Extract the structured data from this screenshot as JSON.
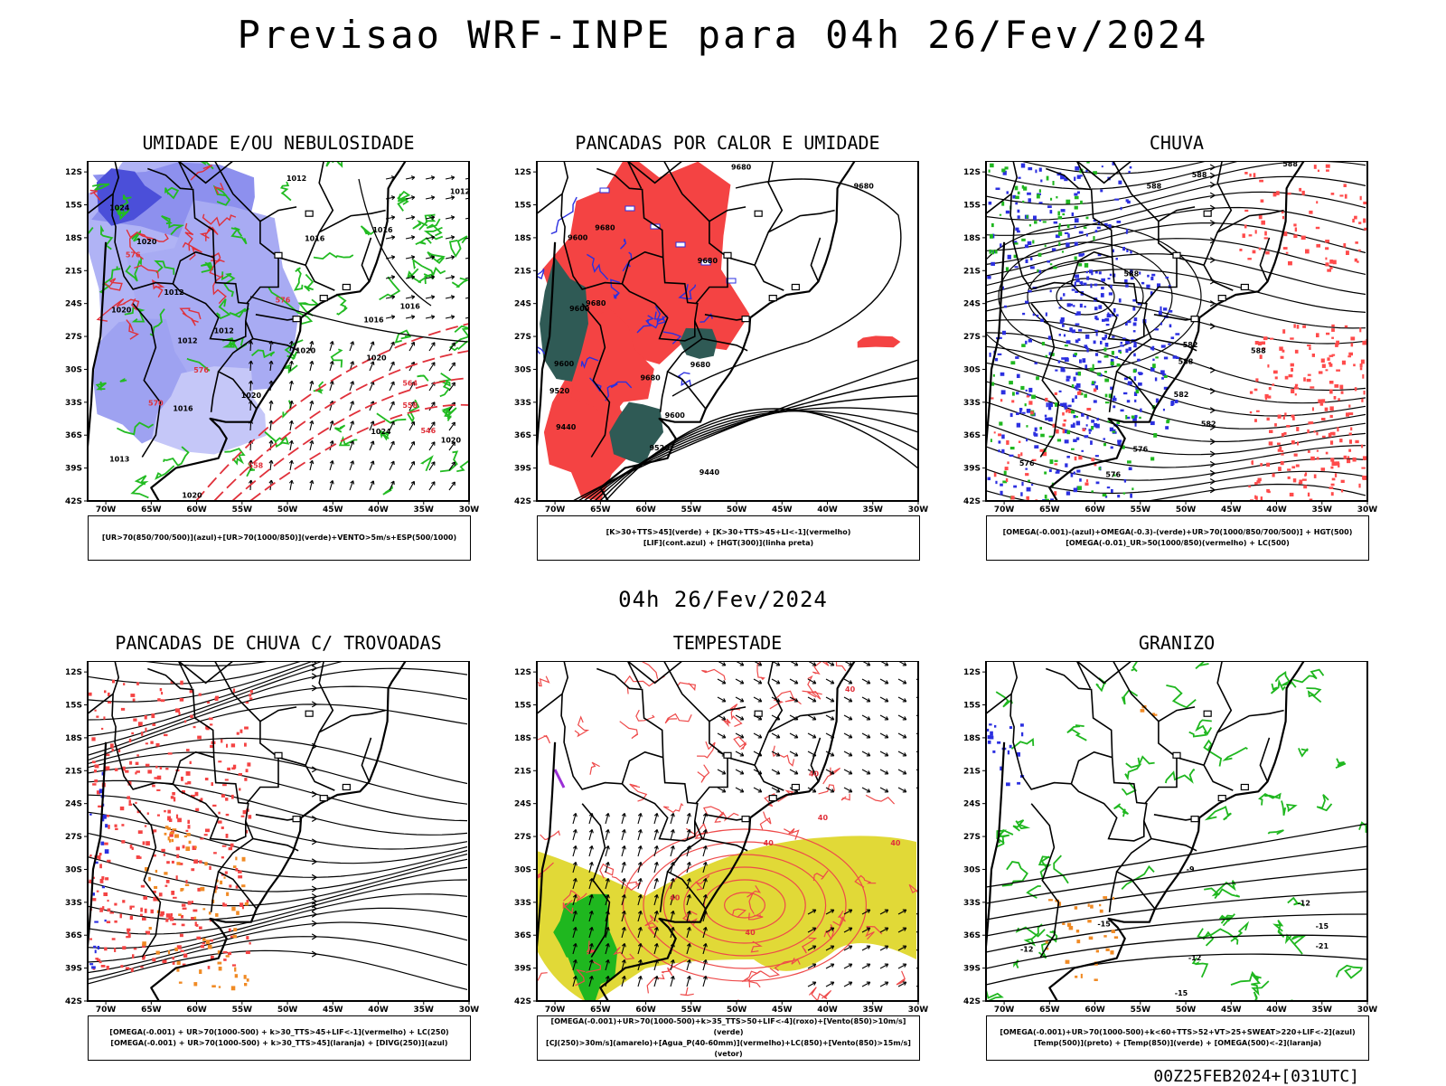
{
  "title": "Previsao WRF-INPE  para 04h 26/Fev/2024",
  "mid_title": "04h 26/Fev/2024",
  "footer": "00Z25FEB2024+[031UTC]",
  "lat_ticks": [
    "12S",
    "15S",
    "18S",
    "21S",
    "24S",
    "27S",
    "30S",
    "33S",
    "36S",
    "39S",
    "42S"
  ],
  "lon_ticks": [
    "70W",
    "65W",
    "60W",
    "55W",
    "50W",
    "45W",
    "40W",
    "35W",
    "30W"
  ],
  "panels": [
    {
      "title": "UMIDADE E/OU NEBULOSIDADE",
      "legend": [
        "[UR>70(850/700/500)](azul)+[UR>70(1000/850)](verde)+VENTO>5m/s+ESP(500/1000)"
      ],
      "fields": [
        "blue",
        "green",
        "red-dashed",
        "black",
        "arrows"
      ],
      "labels": [
        {
          "text": "1012",
          "lon": -49,
          "lat": -12.8,
          "c": "#000"
        },
        {
          "text": "1012",
          "lon": -31,
          "lat": -14,
          "c": "#000"
        },
        {
          "text": "1016",
          "lon": -47,
          "lat": -18.3,
          "c": "#000"
        },
        {
          "text": "1016",
          "lon": -39.5,
          "lat": -17.5,
          "c": "#000"
        },
        {
          "text": "1016",
          "lon": -36.5,
          "lat": -24.5,
          "c": "#000"
        },
        {
          "text": "1016",
          "lon": -40.5,
          "lat": -25.7,
          "c": "#000"
        },
        {
          "text": "1012",
          "lon": -62.5,
          "lat": -23.2,
          "c": "#000"
        },
        {
          "text": "1012",
          "lon": -57,
          "lat": -26.7,
          "c": "#000"
        },
        {
          "text": "1012",
          "lon": -61,
          "lat": -27.6,
          "c": "#000"
        },
        {
          "text": "1020",
          "lon": -48,
          "lat": -28.5,
          "c": "#000"
        },
        {
          "text": "1020",
          "lon": -40.2,
          "lat": -29.2,
          "c": "#000"
        },
        {
          "text": "1020",
          "lon": -54,
          "lat": -32.6,
          "c": "#000"
        },
        {
          "text": "1024",
          "lon": -39.7,
          "lat": -35.9,
          "c": "#000"
        },
        {
          "text": "1020",
          "lon": -32,
          "lat": -36.7,
          "c": "#000"
        },
        {
          "text": "1024",
          "lon": -68.5,
          "lat": -15.5,
          "c": "#000"
        },
        {
          "text": "1020",
          "lon": -65.5,
          "lat": -18.6,
          "c": "#000"
        },
        {
          "text": "1020",
          "lon": -68.3,
          "lat": -24.8,
          "c": "#000"
        },
        {
          "text": "1016",
          "lon": -61.5,
          "lat": -33.8,
          "c": "#000"
        },
        {
          "text": "1013",
          "lon": -68.5,
          "lat": -38.4,
          "c": "#000"
        },
        {
          "text": "1020",
          "lon": -60.5,
          "lat": -41.7,
          "c": "#000"
        },
        {
          "text": "576",
          "lon": -67,
          "lat": -19.8,
          "c": "#e0303a"
        },
        {
          "text": "576",
          "lon": -50.5,
          "lat": -23.9,
          "c": "#e0303a"
        },
        {
          "text": "576",
          "lon": -59.5,
          "lat": -30.3,
          "c": "#e0303a"
        },
        {
          "text": "570",
          "lon": -64.5,
          "lat": -33.3,
          "c": "#e0303a"
        },
        {
          "text": "564",
          "lon": -36.5,
          "lat": -31.5,
          "c": "#e0303a"
        },
        {
          "text": "558",
          "lon": -36.5,
          "lat": -33.5,
          "c": "#e0303a"
        },
        {
          "text": "546",
          "lon": -34.5,
          "lat": -35.8,
          "c": "#e0303a"
        },
        {
          "text": "558",
          "lon": -53.5,
          "lat": -39,
          "c": "#e0303a"
        }
      ]
    },
    {
      "title": "PANCADAS POR CALOR E UMIDADE",
      "legend": [
        "[K>30+TTS>45](verde) + [K>30+TTS>45+LI<-1](vermelho)",
        "[LIF](cont.azul) + [HGT(300)](linha preta)"
      ],
      "fields": [
        "teal",
        "red",
        "blue-lines",
        "black-hgt"
      ],
      "labels": [
        {
          "text": "9680",
          "lon": -49.5,
          "lat": -11.8,
          "c": "#000"
        },
        {
          "text": "9680",
          "lon": -36,
          "lat": -13.5,
          "c": "#000"
        },
        {
          "text": "9680",
          "lon": -64.5,
          "lat": -17.3,
          "c": "#000"
        },
        {
          "text": "9600",
          "lon": -67.5,
          "lat": -18.2,
          "c": "#000"
        },
        {
          "text": "9680",
          "lon": -53.2,
          "lat": -20.3,
          "c": "#000"
        },
        {
          "text": "9680",
          "lon": -65.5,
          "lat": -24.2,
          "c": "#000"
        },
        {
          "text": "9600",
          "lon": -67.3,
          "lat": -24.7,
          "c": "#000"
        },
        {
          "text": "9680",
          "lon": -59.5,
          "lat": -31,
          "c": "#000"
        },
        {
          "text": "9680",
          "lon": -54,
          "lat": -29.8,
          "c": "#000"
        },
        {
          "text": "9600",
          "lon": -69,
          "lat": -29.7,
          "c": "#000"
        },
        {
          "text": "9520",
          "lon": -69.5,
          "lat": -32.2,
          "c": "#000"
        },
        {
          "text": "9600",
          "lon": -56.8,
          "lat": -34.4,
          "c": "#000"
        },
        {
          "text": "9440",
          "lon": -68.8,
          "lat": -35.5,
          "c": "#000"
        },
        {
          "text": "9520",
          "lon": -58.5,
          "lat": -37.4,
          "c": "#000"
        },
        {
          "text": "9440",
          "lon": -53,
          "lat": -39.6,
          "c": "#000"
        }
      ]
    },
    {
      "title": "CHUVA",
      "legend": [
        "[OMEGA(-0.001)-(azul)+OMEGA(-0.3)-(verde)+UR>70(1000/850/700/500)] + HGT(500)",
        "[OMEGA(-0.01)_UR>50(1000/850)(vermelho) + LC(500)"
      ],
      "fields": [
        "blue-dots",
        "green-dots",
        "red-dots",
        "streamlines"
      ],
      "labels": [
        {
          "text": "588",
          "lon": -53.5,
          "lat": -13.5,
          "c": "#000"
        },
        {
          "text": "588",
          "lon": -48.5,
          "lat": -12.5,
          "c": "#000"
        },
        {
          "text": "588",
          "lon": -38.5,
          "lat": -11.5,
          "c": "#000"
        },
        {
          "text": "588",
          "lon": -56,
          "lat": -21.5,
          "c": "#000"
        },
        {
          "text": "588",
          "lon": -50,
          "lat": -29.5,
          "c": "#000"
        },
        {
          "text": "582",
          "lon": -50.5,
          "lat": -32.5,
          "c": "#000"
        },
        {
          "text": "582",
          "lon": -47.5,
          "lat": -35.2,
          "c": "#000"
        },
        {
          "text": "576",
          "lon": -55,
          "lat": -37.5,
          "c": "#000"
        },
        {
          "text": "576",
          "lon": -67.5,
          "lat": -38.8,
          "c": "#000"
        },
        {
          "text": "576",
          "lon": -58,
          "lat": -39.8,
          "c": "#000"
        },
        {
          "text": "582",
          "lon": -49.5,
          "lat": -28,
          "c": "#000"
        },
        {
          "text": "588",
          "lon": -42,
          "lat": -28.5,
          "c": "#000"
        }
      ]
    },
    {
      "title": "PANCADAS DE CHUVA C/ TROVOADAS",
      "legend": [
        "[OMEGA(-0.001) + UR>70(1000-500) + k>30_TTS>45+LIF<-1](vermelho) + LC(250)",
        "[OMEGA(-0.001) + UR>70(1000-500) + k>30_TTS>45](laranja) + [DIVG(250)](azul)"
      ],
      "fields": [
        "red-dots",
        "orange-dots",
        "blue-dots",
        "streamlines"
      ],
      "labels": []
    },
    {
      "title": "TEMPESTADE",
      "legend": [
        "[OMEGA(-0.001)+UR>70(1000-500)+k>35_TTS>50+LIF<-4](roxo)+[Vento(850)>10m/s](verde)",
        "[CJ(250)>30m/s](amarelo)+[Agua_P(40-60mm)](vermelho)+LC(850)+[Vento(850)>15m/s](vetor)"
      ],
      "fields": [
        "yellow",
        "green",
        "red-lines",
        "arrows"
      ],
      "labels": [
        {
          "text": "40",
          "lon": -41.5,
          "lat": -21.5,
          "c": "#e0303a"
        },
        {
          "text": "40",
          "lon": -46.5,
          "lat": -27.8,
          "c": "#e0303a"
        },
        {
          "text": "40",
          "lon": -56.8,
          "lat": -32.8,
          "c": "#e0303a"
        },
        {
          "text": "40",
          "lon": -32.5,
          "lat": -27.8,
          "c": "#e0303a"
        },
        {
          "text": "40",
          "lon": -37.5,
          "lat": -13.8,
          "c": "#e0303a"
        },
        {
          "text": "40",
          "lon": -48.5,
          "lat": -36,
          "c": "#e0303a"
        },
        {
          "text": "40",
          "lon": -40.5,
          "lat": -25.5,
          "c": "#e0303a"
        }
      ]
    },
    {
      "title": "GRANIZO",
      "legend": [
        "[OMEGA(-0.001)+UR>70(1000-500)+k<60+TTS>52+VT>25+SWEAT>220+LIF<-2](azul)",
        "[Temp(500)](preto) + [Temp(850)](verde) + [OMEGA(500)<-2](laranja)"
      ],
      "fields": [
        "green-lines",
        "black-temp",
        "orange-dots",
        "blue-dots"
      ],
      "labels": [
        {
          "text": "-9",
          "lon": -49.5,
          "lat": -30.2,
          "c": "#000"
        },
        {
          "text": "-12",
          "lon": -37,
          "lat": -33.3,
          "c": "#000"
        },
        {
          "text": "-15",
          "lon": -35,
          "lat": -35.4,
          "c": "#000"
        },
        {
          "text": "-21",
          "lon": -35,
          "lat": -37.2,
          "c": "#000"
        },
        {
          "text": "-12",
          "lon": -49,
          "lat": -38.3,
          "c": "#000"
        },
        {
          "text": "-12",
          "lon": -67.5,
          "lat": -37.5,
          "c": "#000"
        },
        {
          "text": "-15",
          "lon": -50.5,
          "lat": -41.5,
          "c": "#000"
        },
        {
          "text": "-15",
          "lon": -59,
          "lat": -35.2,
          "c": "#000"
        }
      ]
    }
  ]
}
